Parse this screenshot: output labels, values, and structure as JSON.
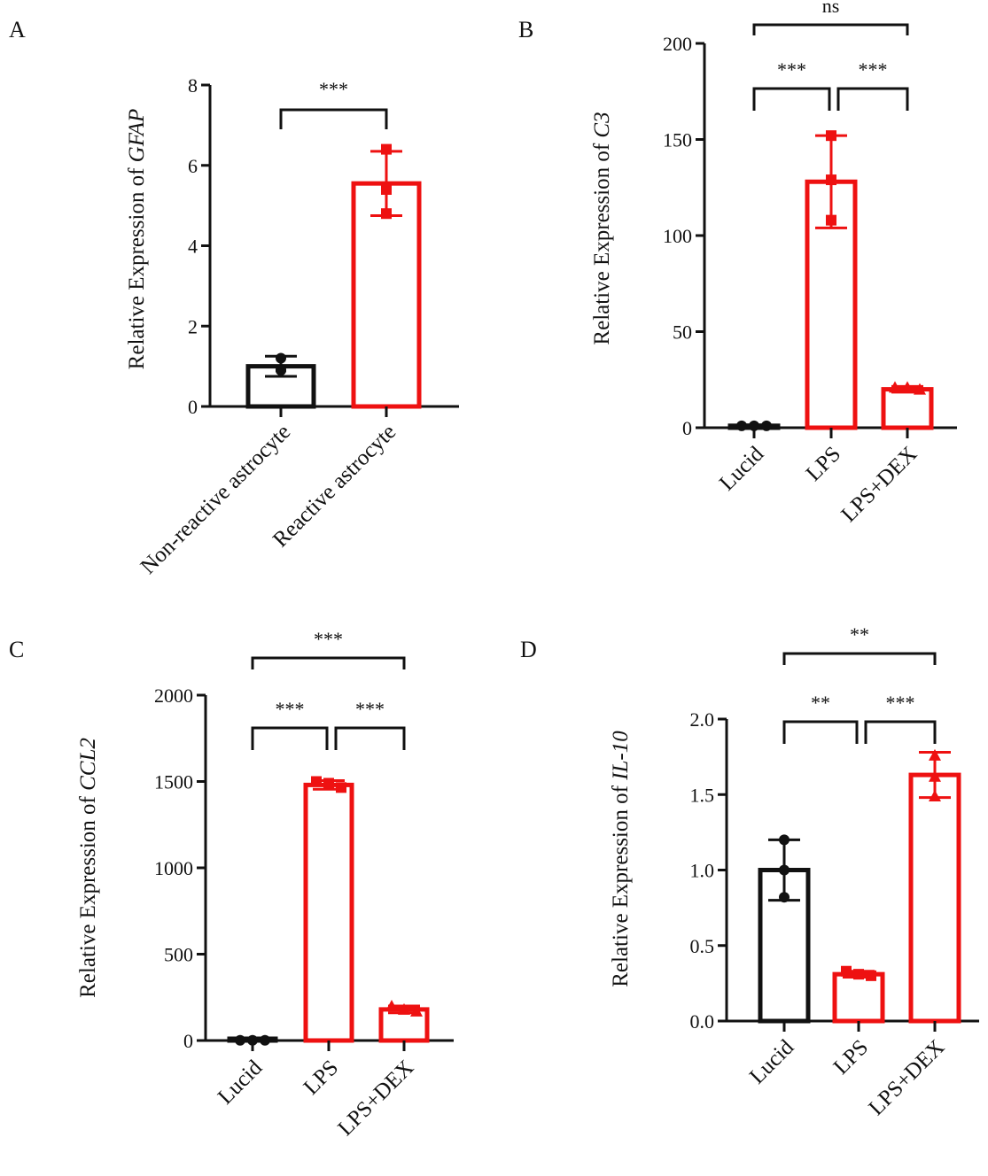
{
  "colors": {
    "black": "#111111",
    "red": "#ee1111"
  },
  "chart_data": [
    {
      "panel": "A",
      "type": "bar",
      "ylabel": "Relative Expression of GFAP",
      "ylabel_prefix": "Relative Expression of ",
      "ylabel_gene": "GFAP",
      "ylim": [
        0,
        8
      ],
      "yticks": [
        "0",
        "2",
        "4",
        "6",
        "8"
      ],
      "categories": [
        "Non-reactive astrocyte",
        "Reactive astrocyte"
      ],
      "values": [
        1.0,
        5.55
      ],
      "errors": [
        0.25,
        0.8
      ],
      "points": [
        [
          1.2,
          0.9,
          0.9
        ],
        [
          6.4,
          5.4,
          4.8
        ]
      ],
      "markers": [
        "circle",
        "square"
      ],
      "colors": [
        "black",
        "red"
      ],
      "significance": [
        {
          "from": 0,
          "to": 1,
          "label": "***"
        }
      ]
    },
    {
      "panel": "B",
      "type": "bar",
      "ylabel": "Relative Expression of C3",
      "ylabel_prefix": "Relative Expression of ",
      "ylabel_gene": "C3",
      "ylim": [
        0,
        200
      ],
      "yticks": [
        "0",
        "50",
        "100",
        "150",
        "200"
      ],
      "categories": [
        "Lucid",
        "LPS",
        "LPS+DEX"
      ],
      "values": [
        1,
        128,
        20
      ],
      "errors": [
        0.5,
        24,
        1.5
      ],
      "points": [
        [
          1,
          1,
          1
        ],
        [
          152,
          129,
          108
        ],
        [
          21,
          21,
          20
        ]
      ],
      "markers": [
        "circle",
        "square",
        "triangle"
      ],
      "colors": [
        "black",
        "red",
        "red"
      ],
      "significance": [
        {
          "from": 0,
          "to": 1,
          "label": "***"
        },
        {
          "from": 1,
          "to": 2,
          "label": "***"
        },
        {
          "from": 0,
          "to": 2,
          "label": "ns"
        }
      ]
    },
    {
      "panel": "C",
      "type": "bar",
      "ylabel": "Relative Expression of CCL2",
      "ylabel_prefix": "Relative Expression of ",
      "ylabel_gene": "CCL2",
      "ylim": [
        0,
        2000
      ],
      "yticks": [
        "0",
        "500",
        "1000",
        "1500",
        "2000"
      ],
      "categories": [
        "Lucid",
        "LPS",
        "LPS+DEX"
      ],
      "values": [
        1,
        1480,
        180
      ],
      "errors": [
        0.5,
        25,
        20
      ],
      "points": [
        [
          1,
          1,
          1
        ],
        [
          1500,
          1490,
          1465
        ],
        [
          200,
          180,
          170
        ]
      ],
      "markers": [
        "circle",
        "square",
        "triangle"
      ],
      "colors": [
        "black",
        "red",
        "red"
      ],
      "significance": [
        {
          "from": 0,
          "to": 1,
          "label": "***"
        },
        {
          "from": 1,
          "to": 2,
          "label": "***"
        },
        {
          "from": 0,
          "to": 2,
          "label": "***"
        }
      ]
    },
    {
      "panel": "D",
      "type": "bar",
      "ylabel": "Relative Expression of IL-10",
      "ylabel_prefix": "Relative Expression of ",
      "ylabel_gene": "IL-10",
      "ylim": [
        0,
        2.0
      ],
      "yticks": [
        "0.0",
        "0.5",
        "1.0",
        "1.5",
        "2.0"
      ],
      "categories": [
        "Lucid",
        "LPS",
        "LPS+DEX"
      ],
      "values": [
        1.0,
        0.31,
        1.63
      ],
      "errors": [
        0.2,
        0.02,
        0.15
      ],
      "points": [
        [
          1.2,
          1.0,
          0.82
        ],
        [
          0.33,
          0.31,
          0.3
        ],
        [
          1.76,
          1.62,
          1.49
        ]
      ],
      "markers": [
        "circle",
        "square",
        "triangle"
      ],
      "colors": [
        "black",
        "red",
        "red"
      ],
      "significance": [
        {
          "from": 0,
          "to": 1,
          "label": "**"
        },
        {
          "from": 1,
          "to": 2,
          "label": "***"
        },
        {
          "from": 0,
          "to": 2,
          "label": "**"
        }
      ]
    }
  ]
}
